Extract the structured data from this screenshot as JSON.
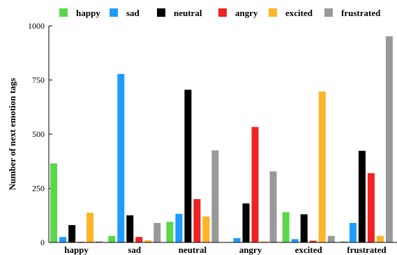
{
  "chart_data": {
    "type": "bar",
    "title": "",
    "xlabel": "",
    "ylabel": "Number of next emotion tags",
    "ylim": [
      0,
      1000
    ],
    "yticks": [
      0,
      250,
      500,
      750,
      1000
    ],
    "grid": false,
    "legend_position": "top",
    "categories": [
      "happy",
      "sad",
      "neutral",
      "angry",
      "excited",
      "frustrated"
    ],
    "series": [
      {
        "name": "happy",
        "color": "#5cd64a",
        "values": [
          365,
          30,
          95,
          2,
          140,
          5
        ]
      },
      {
        "name": "sad",
        "color": "#1e9bff",
        "values": [
          25,
          778,
          132,
          20,
          15,
          90
        ]
      },
      {
        "name": "neutral",
        "color": "#000000",
        "values": [
          80,
          125,
          705,
          180,
          130,
          423
        ]
      },
      {
        "name": "angry",
        "color": "#f02323",
        "values": [
          3,
          25,
          200,
          533,
          8,
          320
        ]
      },
      {
        "name": "excited",
        "color": "#fbb527",
        "values": [
          137,
          10,
          120,
          5,
          697,
          30
        ]
      },
      {
        "name": "frustrated",
        "color": "#999999",
        "values": [
          5,
          90,
          425,
          328,
          30,
          952
        ]
      }
    ]
  }
}
